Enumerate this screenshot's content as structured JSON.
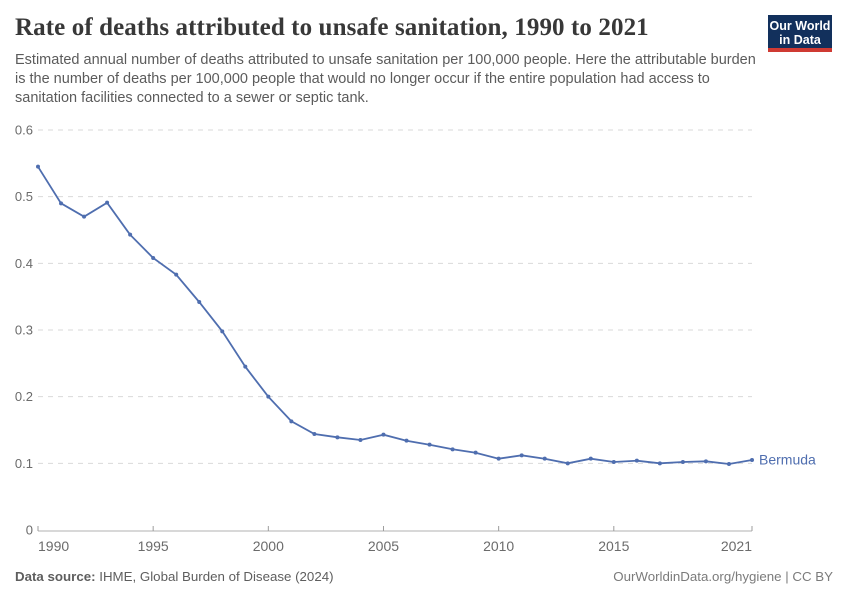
{
  "header": {
    "title": "Rate of deaths attributed to unsafe sanitation, 1990 to 2021",
    "subtitle": "Estimated annual number of deaths attributed to unsafe sanitation per 100,000 people. Here the attributable burden is the number of deaths per 100,000 people that would no longer occur if the entire population had access to sanitation facilities connected to a sewer or septic tank.",
    "logo": {
      "line1": "Our World",
      "line2": "in Data",
      "bg_color": "#12305c",
      "bar_color": "#cf3a33"
    }
  },
  "footer": {
    "source_label": "Data source:",
    "source_value": " IHME, Global Burden of Disease (2024)",
    "credit": "OurWorldinData.org/hygiene | CC BY"
  },
  "chart_data": {
    "type": "line",
    "title": "Rate of deaths attributed to unsafe sanitation, 1990 to 2021",
    "xlabel": "",
    "ylabel": "",
    "x": [
      1990,
      1991,
      1992,
      1993,
      1994,
      1995,
      1996,
      1997,
      1998,
      1999,
      2000,
      2001,
      2002,
      2003,
      2004,
      2005,
      2006,
      2007,
      2008,
      2009,
      2010,
      2011,
      2012,
      2013,
      2014,
      2015,
      2016,
      2017,
      2018,
      2019,
      2020,
      2021
    ],
    "series": [
      {
        "name": "Bermuda",
        "color": "#4f6eaf",
        "values": [
          0.545,
          0.49,
          0.47,
          0.491,
          0.443,
          0.408,
          0.383,
          0.342,
          0.298,
          0.245,
          0.2,
          0.163,
          0.144,
          0.139,
          0.135,
          0.143,
          0.134,
          0.128,
          0.121,
          0.116,
          0.107,
          0.112,
          0.107,
          0.1,
          0.107,
          0.102,
          0.104,
          0.1,
          0.102,
          0.103,
          0.099,
          0.105
        ]
      }
    ],
    "ylim": [
      0,
      0.6
    ],
    "yticks": [
      0,
      0.1,
      0.2,
      0.3,
      0.4,
      0.5,
      0.6
    ],
    "xticks": [
      1990,
      1995,
      2000,
      2005,
      2010,
      2015,
      2021
    ],
    "grid": "horizontal-dashed",
    "legend": "inline-end-label",
    "marker": "dot"
  }
}
